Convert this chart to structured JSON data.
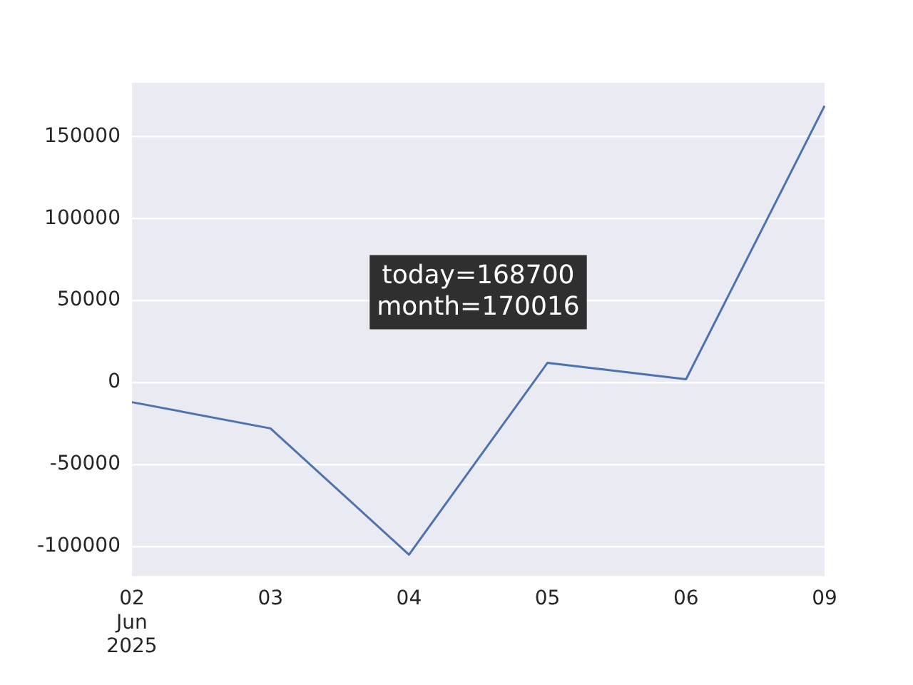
{
  "chart_data": {
    "type": "line",
    "categories": [
      "02\nJun\n2025",
      "03",
      "04",
      "05",
      "06",
      "09"
    ],
    "series": [
      {
        "color": "#4c72b0",
        "values": [
          -12000,
          -28000,
          -105000,
          12000,
          2000,
          168700
        ]
      }
    ],
    "ylim": [
      -118000,
      182800
    ],
    "yticks": [
      -100000,
      -50000,
      0,
      50000,
      100000,
      150000
    ],
    "grid": "y",
    "legend": false,
    "marker": "none",
    "line_style": "solid",
    "annotations": [
      "today=168700\nmonth=170016"
    ]
  }
}
